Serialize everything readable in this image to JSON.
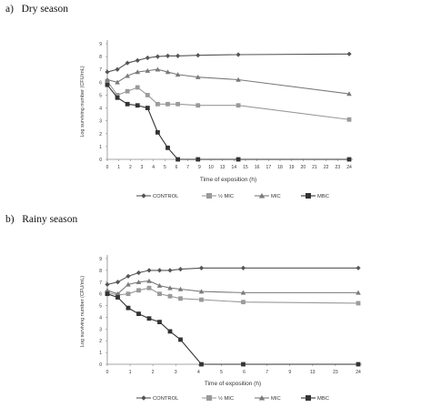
{
  "chart_data": [
    {
      "type": "line",
      "panel_label": "a)",
      "title": "Dry season",
      "xlabel": "Time of exposition (h)",
      "ylabel": "Log surviving number (CFU/mL)",
      "x": [
        0,
        1,
        2,
        3,
        4,
        5,
        6,
        7,
        8,
        9,
        10,
        11,
        12,
        13,
        14,
        15,
        16,
        17,
        18,
        19,
        20,
        21,
        22,
        23,
        24
      ],
      "x_ticks": [
        "0",
        "1",
        "2",
        "3",
        "4",
        "5",
        "6",
        "7",
        "9",
        "10",
        "13",
        "14",
        "15",
        "16",
        "17",
        "18",
        "19",
        "20",
        "21",
        "22",
        "23",
        "24"
      ],
      "ylim": [
        0,
        9
      ],
      "y_ticks": [
        0,
        1,
        2,
        3,
        4,
        5,
        6,
        7,
        8,
        9
      ],
      "legend_position": "bottom",
      "series": [
        {
          "name": "CONTROL",
          "marker": "diamond",
          "color": "#555555",
          "points": [
            [
              0,
              6.8
            ],
            [
              1,
              7.0
            ],
            [
              2,
              7.5
            ],
            [
              3,
              7.7
            ],
            [
              4,
              7.9
            ],
            [
              5,
              8.0
            ],
            [
              6,
              8.05
            ],
            [
              7,
              8.05
            ],
            [
              9,
              8.1
            ],
            [
              13,
              8.15
            ],
            [
              24,
              8.2
            ]
          ]
        },
        {
          "name": "½ MIC",
          "marker": "square",
          "color": "#9a9a9a",
          "points": [
            [
              0,
              6.1
            ],
            [
              1,
              5.0
            ],
            [
              2,
              5.3
            ],
            [
              3,
              5.6
            ],
            [
              4,
              5.0
            ],
            [
              5,
              4.3
            ],
            [
              6,
              4.3
            ],
            [
              7,
              4.3
            ],
            [
              9,
              4.2
            ],
            [
              13,
              4.2
            ],
            [
              24,
              3.1
            ]
          ]
        },
        {
          "name": "MIC",
          "marker": "triangle",
          "color": "#7a7a7a",
          "points": [
            [
              0,
              6.2
            ],
            [
              1,
              6.0
            ],
            [
              2,
              6.5
            ],
            [
              3,
              6.8
            ],
            [
              4,
              6.9
            ],
            [
              5,
              7.0
            ],
            [
              6,
              6.8
            ],
            [
              7,
              6.6
            ],
            [
              9,
              6.4
            ],
            [
              13,
              6.2
            ],
            [
              24,
              5.1
            ]
          ]
        },
        {
          "name": "MBC",
          "marker": "square",
          "color": "#333333",
          "points": [
            [
              0,
              5.8
            ],
            [
              1,
              4.8
            ],
            [
              2,
              4.3
            ],
            [
              3,
              4.2
            ],
            [
              4,
              4.0
            ],
            [
              5,
              2.1
            ],
            [
              6,
              0.9
            ],
            [
              7,
              0
            ],
            [
              9,
              0
            ],
            [
              13,
              0
            ],
            [
              24,
              0
            ]
          ]
        }
      ]
    },
    {
      "type": "line",
      "panel_label": "b)",
      "title": "Rainy season",
      "xlabel": "Time of exposition (h)",
      "ylabel": "Log surviving number (CFU/mL)",
      "x": [
        0,
        1,
        2,
        3,
        4,
        5,
        6,
        7,
        8,
        9,
        10,
        11,
        12,
        13,
        14,
        15,
        16,
        17,
        18,
        19,
        20,
        21,
        22,
        23,
        24
      ],
      "x_ticks": [
        "0",
        "1",
        "2",
        "3",
        "4",
        "5",
        "6",
        "7",
        "9",
        "13",
        "23",
        "24"
      ],
      "ylim": [
        0,
        9
      ],
      "y_ticks": [
        0,
        1,
        2,
        3,
        4,
        5,
        6,
        7,
        8,
        9
      ],
      "legend_position": "bottom",
      "series": [
        {
          "name": "CONTROL",
          "marker": "diamond",
          "color": "#555555",
          "points": [
            [
              0,
              6.8
            ],
            [
              1,
              7.0
            ],
            [
              2,
              7.5
            ],
            [
              3,
              7.8
            ],
            [
              4,
              8.0
            ],
            [
              5,
              8.0
            ],
            [
              6,
              8.0
            ],
            [
              7,
              8.1
            ],
            [
              9,
              8.2
            ],
            [
              13,
              8.2
            ],
            [
              24,
              8.2
            ]
          ]
        },
        {
          "name": "½ MIC",
          "marker": "square",
          "color": "#9a9a9a",
          "points": [
            [
              0,
              6.1
            ],
            [
              1,
              5.9
            ],
            [
              2,
              6.0
            ],
            [
              3,
              6.3
            ],
            [
              4,
              6.5
            ],
            [
              5,
              6.0
            ],
            [
              6,
              5.8
            ],
            [
              7,
              5.6
            ],
            [
              9,
              5.5
            ],
            [
              13,
              5.3
            ],
            [
              24,
              5.2
            ]
          ]
        },
        {
          "name": "MIC",
          "marker": "triangle",
          "color": "#7a7a7a",
          "points": [
            [
              0,
              6.3
            ],
            [
              1,
              6.0
            ],
            [
              2,
              6.8
            ],
            [
              3,
              7.0
            ],
            [
              4,
              7.1
            ],
            [
              5,
              6.7
            ],
            [
              6,
              6.5
            ],
            [
              7,
              6.4
            ],
            [
              9,
              6.2
            ],
            [
              13,
              6.1
            ],
            [
              24,
              6.1
            ]
          ]
        },
        {
          "name": "MBC",
          "marker": "square",
          "color": "#333333",
          "points": [
            [
              0,
              6.0
            ],
            [
              1,
              5.7
            ],
            [
              2,
              4.8
            ],
            [
              3,
              4.3
            ],
            [
              4,
              3.9
            ],
            [
              5,
              3.6
            ],
            [
              6,
              2.8
            ],
            [
              7,
              2.1
            ],
            [
              9,
              0
            ],
            [
              13,
              0
            ],
            [
              24,
              0
            ]
          ]
        }
      ]
    }
  ]
}
